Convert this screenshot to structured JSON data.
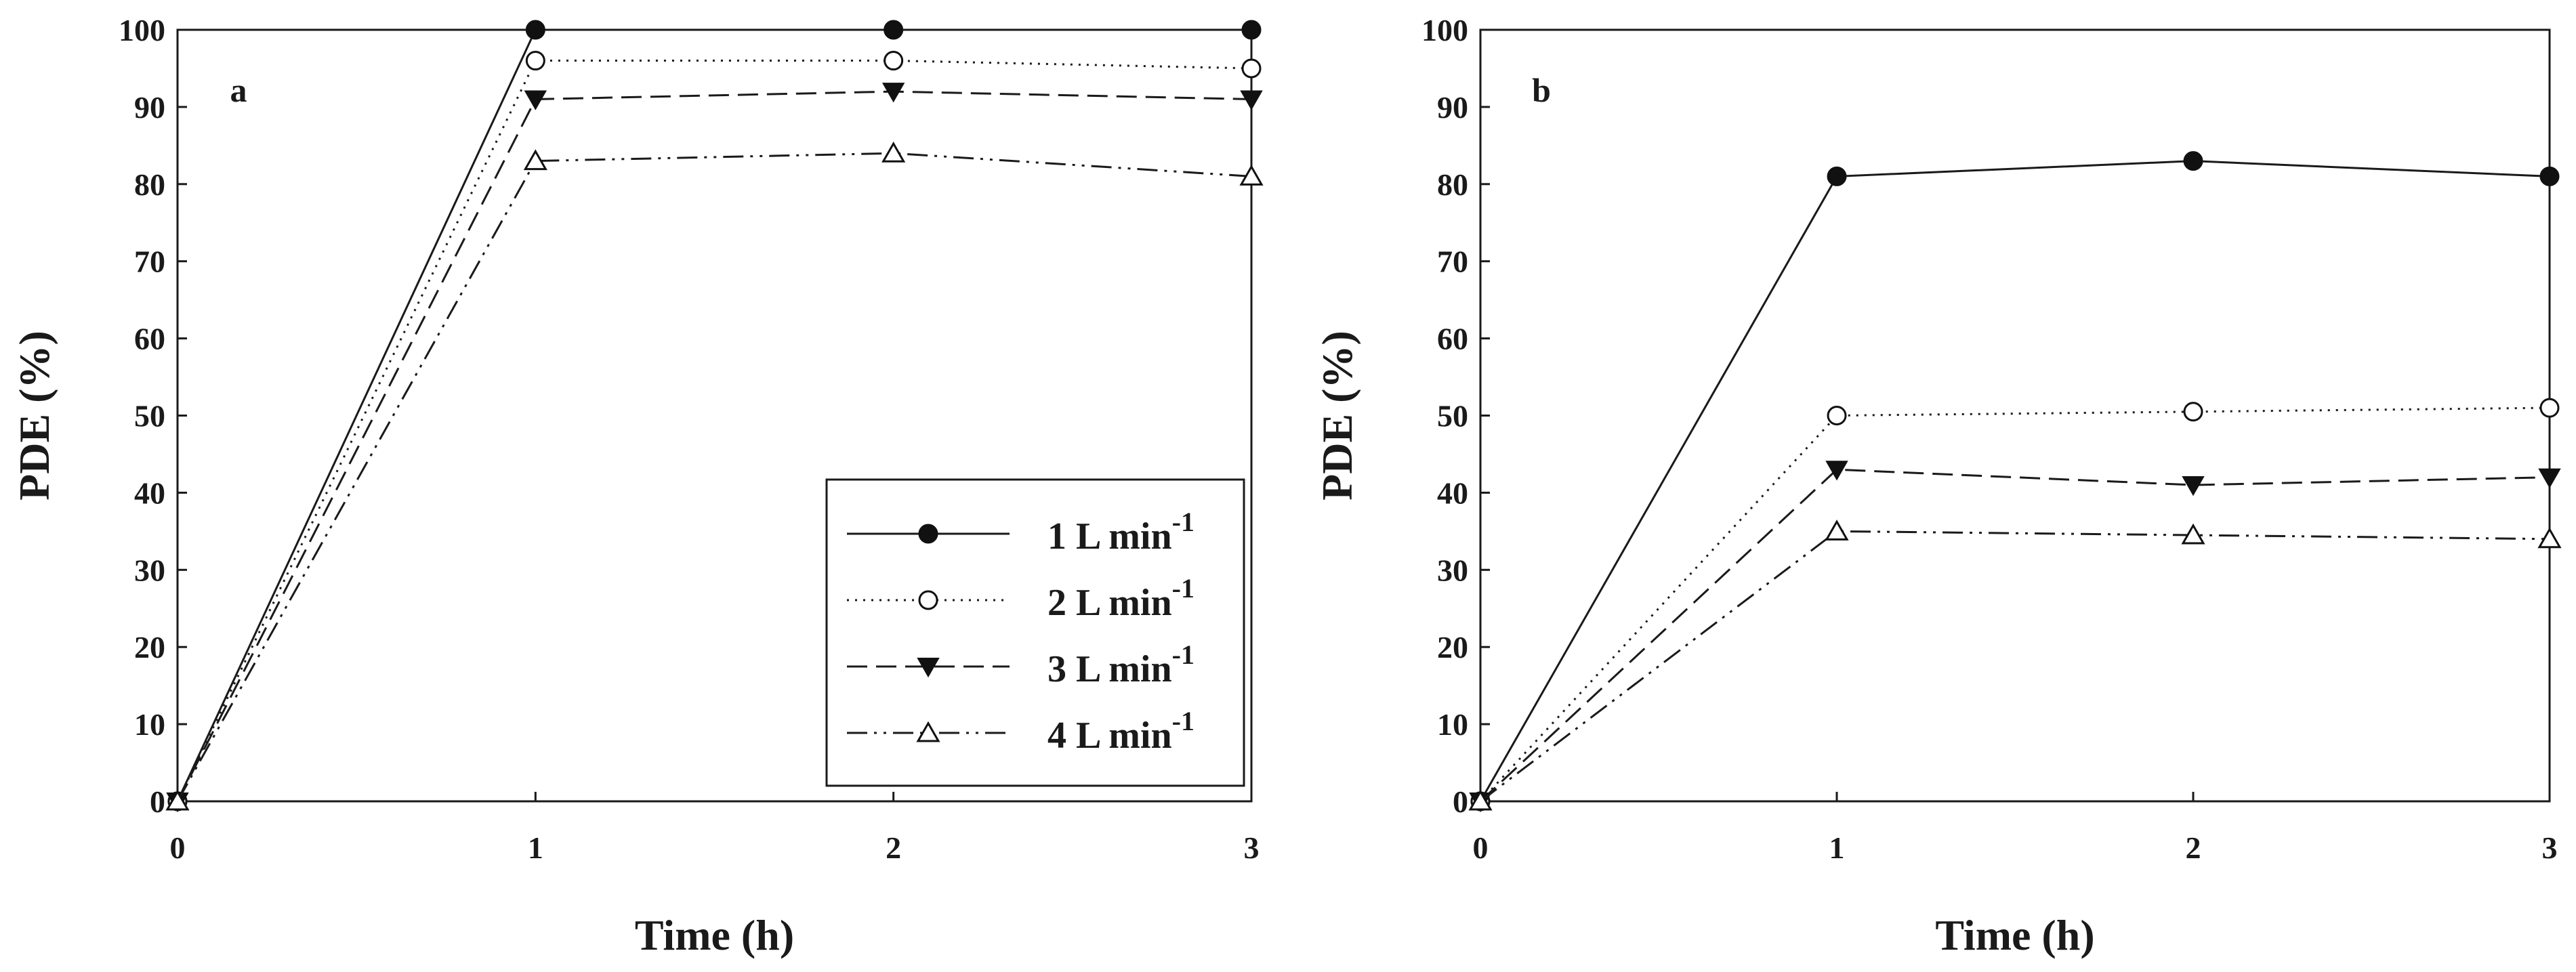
{
  "chart_data": [
    {
      "type": "line",
      "panel_label": "a",
      "xlabel": "Time (h)",
      "ylabel": "PDE (%)",
      "x": [
        0,
        1,
        2,
        3
      ],
      "xlim": [
        0,
        3
      ],
      "ylim": [
        0,
        100
      ],
      "x_ticks": [
        "0",
        "1",
        "2",
        "3"
      ],
      "y_ticks": [
        "0",
        "10",
        "20",
        "30",
        "40",
        "50",
        "60",
        "70",
        "80",
        "90",
        "100"
      ],
      "grid": false,
      "legend_position": "bottom-right",
      "series": [
        {
          "name": "1 L min",
          "name_superscript": "-1",
          "marker": "filled-circle",
          "line_style": "solid",
          "values": [
            0,
            100,
            100,
            100
          ]
        },
        {
          "name": "2 L min",
          "name_superscript": "-1",
          "marker": "open-circle",
          "line_style": "dotted",
          "values": [
            0,
            96,
            96,
            95
          ]
        },
        {
          "name": "3 L min",
          "name_superscript": "-1",
          "marker": "filled-triangle-down",
          "line_style": "dashed",
          "values": [
            0,
            91,
            92,
            91
          ]
        },
        {
          "name": "4 L min",
          "name_superscript": "-1",
          "marker": "open-triangle-up",
          "line_style": "dash-dot-dot",
          "values": [
            0,
            83,
            84,
            81
          ]
        }
      ]
    },
    {
      "type": "line",
      "panel_label": "b",
      "xlabel": "Time (h)",
      "ylabel": "PDE (%)",
      "x": [
        0,
        1,
        2,
        3
      ],
      "xlim": [
        0,
        3
      ],
      "ylim": [
        0,
        100
      ],
      "x_ticks": [
        "0",
        "1",
        "2",
        "3"
      ],
      "y_ticks": [
        "0",
        "10",
        "20",
        "30",
        "40",
        "50",
        "60",
        "70",
        "80",
        "90",
        "100"
      ],
      "grid": false,
      "series": [
        {
          "name": "1 L min",
          "name_superscript": "-1",
          "marker": "filled-circle",
          "line_style": "solid",
          "values": [
            0,
            81,
            83,
            81
          ]
        },
        {
          "name": "2 L min",
          "name_superscript": "-1",
          "marker": "open-circle",
          "line_style": "dotted",
          "values": [
            0,
            50,
            50.5,
            51
          ]
        },
        {
          "name": "3 L min",
          "name_superscript": "-1",
          "marker": "filled-triangle-down",
          "line_style": "dashed",
          "values": [
            0,
            43,
            41,
            42
          ]
        },
        {
          "name": "4 L min",
          "name_superscript": "-1",
          "marker": "open-triangle-up",
          "line_style": "dash-dot-dot",
          "values": [
            0,
            35,
            34.5,
            34
          ]
        }
      ]
    }
  ]
}
